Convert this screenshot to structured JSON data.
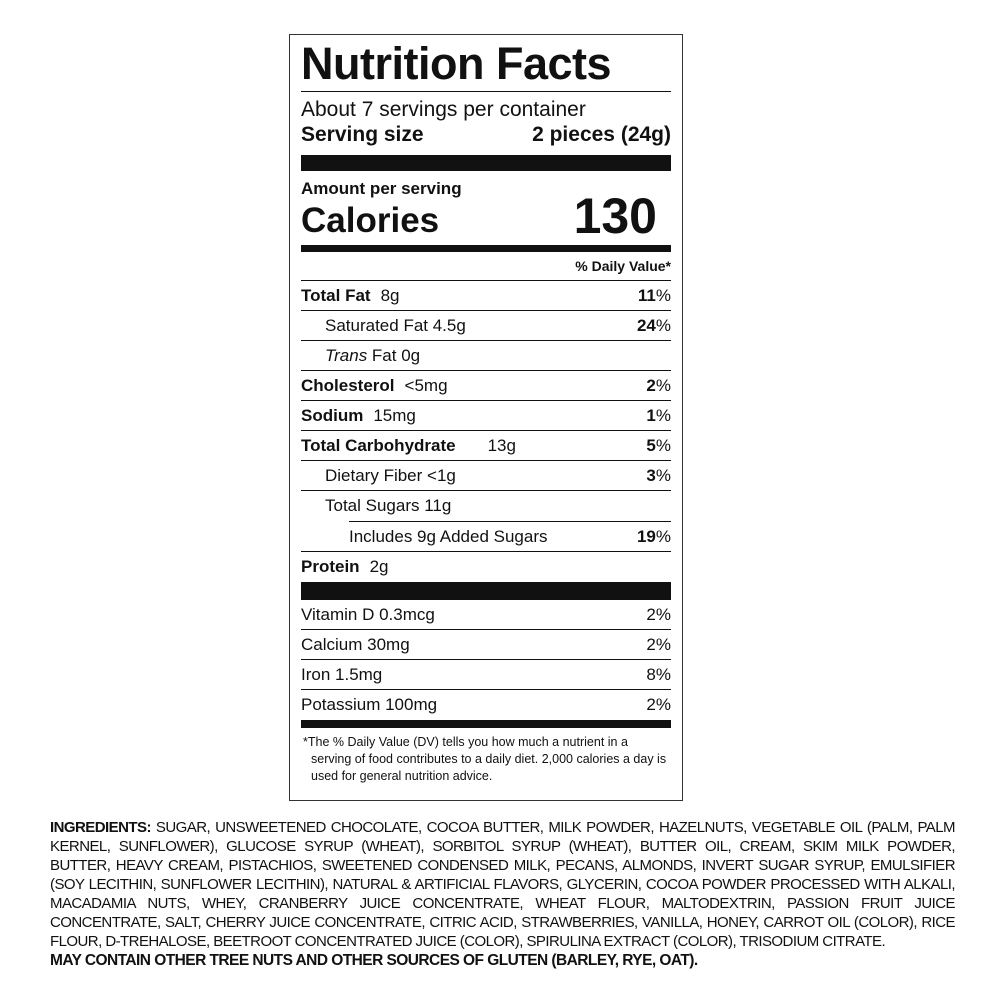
{
  "label": {
    "title": "Nutrition Facts",
    "servings": "About 7 servings per container",
    "serving_size_label": "Serving size",
    "serving_size_value": "2 pieces (24g)",
    "amount_per_serving": "Amount per serving",
    "calories_label": "Calories",
    "calories_value": "130",
    "dv_header": "% Daily Value*",
    "nutrients": [
      {
        "name": "Total Fat",
        "amount": "8g",
        "dv": "11",
        "bold": true
      },
      {
        "name": "Saturated Fat 4.5g",
        "amount": "",
        "dv": "24",
        "bold": false
      },
      {
        "name": "Trans",
        "amount": " Fat 0g",
        "dv": "",
        "bold": false
      },
      {
        "name": "Cholesterol",
        "amount": "<5mg",
        "dv": "2",
        "bold": true
      },
      {
        "name": "Sodium",
        "amount": "15mg",
        "dv": "1",
        "bold": true
      },
      {
        "name": "Total Carbohydrate",
        "amount": "13g",
        "dv": "5",
        "bold": true
      },
      {
        "name": "Dietary Fiber <1g",
        "amount": "",
        "dv": "3",
        "bold": false
      },
      {
        "name": "Total Sugars 11g",
        "amount": "",
        "dv": "",
        "bold": false
      },
      {
        "name": "Includes 9g Added Sugars",
        "amount": "",
        "dv": "19",
        "bold": false
      },
      {
        "name": "Protein",
        "amount": "2g",
        "dv": "",
        "bold": true
      }
    ],
    "pct_sign": "%",
    "vitamins": [
      {
        "name": "Vitamin D 0.3mcg",
        "dv": "2%"
      },
      {
        "name": "Calcium 30mg",
        "dv": "2%"
      },
      {
        "name": "Iron 1.5mg",
        "dv": "8%"
      },
      {
        "name": "Potassium 100mg",
        "dv": "2%"
      }
    ],
    "footnote": "*The % Daily Value (DV) tells you how much a nutrient in a serving of food contributes to a daily diet. 2,000 calories a day is used for general nutrition advice."
  },
  "ingredients": {
    "label": "INGREDIENTS:",
    "text": "SUGAR, UNSWEETENED CHOCOLATE, COCOA BUTTER, MILK POWDER, HAZELNUTS, VEGETABLE OIL (PALM, PALM KERNEL, SUNFLOWER), GLUCOSE SYRUP (WHEAT), SORBITOL SYRUP (WHEAT), BUTTER OIL, CREAM, SKIM MILK POWDER, BUTTER, HEAVY CREAM, PISTACHIOS, SWEETENED CONDENSED MILK, PECANS, ALMONDS, INVERT SUGAR SYRUP, EMULSIFIER (SOY LECITHIN, SUNFLOWER LECITHIN), NATURAL & ARTIFICIAL FLAVORS, GLYCERIN, COCOA POWDER PROCESSED WITH ALKALI, MACADAMIA NUTS, WHEY, CRANBERRY JUICE CONCENTRATE, WHEAT FLOUR, MALTODEXTRIN, PASSION FRUIT JUICE CONCENTRATE, SALT, CHERRY JUICE CONCENTRATE, CITRIC ACID, STRAWBERRIES, VANILLA, HONEY, CARROT OIL (COLOR), RICE FLOUR, D-TREHALOSE, BEETROOT CONCENTRATED JUICE (COLOR), SPIRULINA EXTRACT (COLOR), TRISODIUM CITRATE.",
    "allergen": "MAY CONTAIN OTHER TREE NUTS AND OTHER SOURCES OF GLUTEN (BARLEY, RYE, OAT)."
  }
}
